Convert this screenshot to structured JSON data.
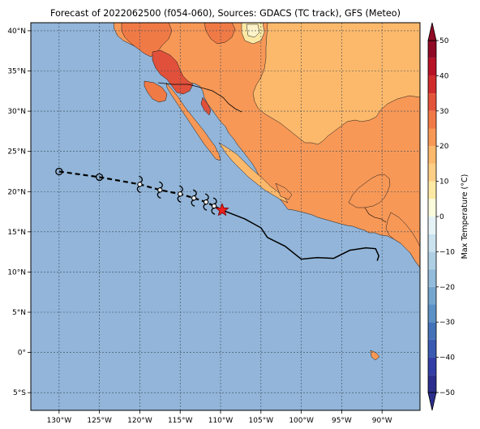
{
  "title": "Forecast of 2022062500 (f054-060), Sources: GDACS (TC track), GFS (Meteo)",
  "map": {
    "lon_range": [
      -133.5,
      -85.3
    ],
    "lat_range": [
      -7.2,
      41.0
    ],
    "lon_ticks": [
      {
        "value": -130,
        "label": "130°W"
      },
      {
        "value": -125,
        "label": "125°W"
      },
      {
        "value": -120,
        "label": "120°W"
      },
      {
        "value": -115,
        "label": "115°W"
      },
      {
        "value": -110,
        "label": "110°W"
      },
      {
        "value": -105,
        "label": "105°W"
      },
      {
        "value": -100,
        "label": "100°W"
      },
      {
        "value": -95,
        "label": "95°W"
      },
      {
        "value": -90,
        "label": "90°W"
      }
    ],
    "lat_ticks": [
      {
        "value": 40,
        "label": "40°N"
      },
      {
        "value": 35,
        "label": "35°N"
      },
      {
        "value": 30,
        "label": "30°N"
      },
      {
        "value": 25,
        "label": "25°N"
      },
      {
        "value": 20,
        "label": "20°N"
      },
      {
        "value": 15,
        "label": "15°N"
      },
      {
        "value": 10,
        "label": "10°N"
      },
      {
        "value": 5,
        "label": "5°N"
      },
      {
        "value": 0,
        "label": "0°"
      },
      {
        "value": -5,
        "label": "5°S"
      }
    ],
    "grid": true,
    "ocean_color": "#92b5d9"
  },
  "track": {
    "forecast_points": [
      [
        -130.0,
        22.5
      ],
      [
        -125.0,
        21.8
      ]
    ],
    "storm_symbols": [
      [
        -120.0,
        20.9
      ],
      [
        -117.5,
        20.2
      ],
      [
        -115.0,
        19.7
      ],
      [
        -113.3,
        19.2
      ],
      [
        -111.8,
        18.7
      ],
      [
        -110.8,
        18.2
      ]
    ],
    "current_position": [
      -109.8,
      17.7
    ],
    "swath": [
      [
        -109.8,
        17.7
      ],
      [
        -107.0,
        16.6
      ],
      [
        -105.0,
        15.5
      ],
      [
        -104.2,
        14.3
      ],
      [
        -102.0,
        13.2
      ],
      [
        -100.0,
        11.6
      ],
      [
        -98.0,
        11.8
      ],
      [
        -96.0,
        11.7
      ],
      [
        -94.0,
        12.7
      ],
      [
        -92.0,
        13.0
      ],
      [
        -90.8,
        12.9
      ],
      [
        -90.4,
        12.0
      ],
      [
        -90.6,
        11.4
      ]
    ],
    "star_color": "#e8201e"
  },
  "colorbar": {
    "label": "Max Temperature (°C)",
    "min": -50,
    "max": 50,
    "ticks": [
      -50,
      -40,
      -30,
      -20,
      -10,
      0,
      10,
      20,
      30,
      40,
      50
    ],
    "bins": [
      {
        "from": -50,
        "to": -45,
        "color": "#2b2e8c"
      },
      {
        "from": -45,
        "to": -40,
        "color": "#323ea5"
      },
      {
        "from": -40,
        "to": -35,
        "color": "#3a5ab2"
      },
      {
        "from": -35,
        "to": -30,
        "color": "#4372b8"
      },
      {
        "from": -30,
        "to": -25,
        "color": "#5b91c4"
      },
      {
        "from": -25,
        "to": -20,
        "color": "#74a6cf"
      },
      {
        "from": -20,
        "to": -15,
        "color": "#92bcda"
      },
      {
        "from": -15,
        "to": -10,
        "color": "#afd0e4"
      },
      {
        "from": -10,
        "to": -5,
        "color": "#cbe3ee"
      },
      {
        "from": -5,
        "to": 0,
        "color": "#e6f3f6"
      },
      {
        "from": 0,
        "to": 5,
        "color": "#fbfbdd"
      },
      {
        "from": 5,
        "to": 10,
        "color": "#fde9a4"
      },
      {
        "from": 10,
        "to": 15,
        "color": "#fdcf86"
      },
      {
        "from": 15,
        "to": 20,
        "color": "#fcb96b"
      },
      {
        "from": 20,
        "to": 25,
        "color": "#f79857"
      },
      {
        "from": 25,
        "to": 30,
        "color": "#f07a46"
      },
      {
        "from": 30,
        "to": 35,
        "color": "#e4543a"
      },
      {
        "from": 35,
        "to": 40,
        "color": "#d02c2c"
      },
      {
        "from": 40,
        "to": 45,
        "color": "#b71226"
      },
      {
        "from": 45,
        "to": 50,
        "color": "#900a25"
      }
    ]
  },
  "land": {
    "colors": {
      "t40": "#e0503a",
      "t35": "#f07a46",
      "t30": "#f79857",
      "t25": "#fcb96b",
      "t15": "#fde9a4",
      "cool": "#fdf2c8"
    }
  }
}
